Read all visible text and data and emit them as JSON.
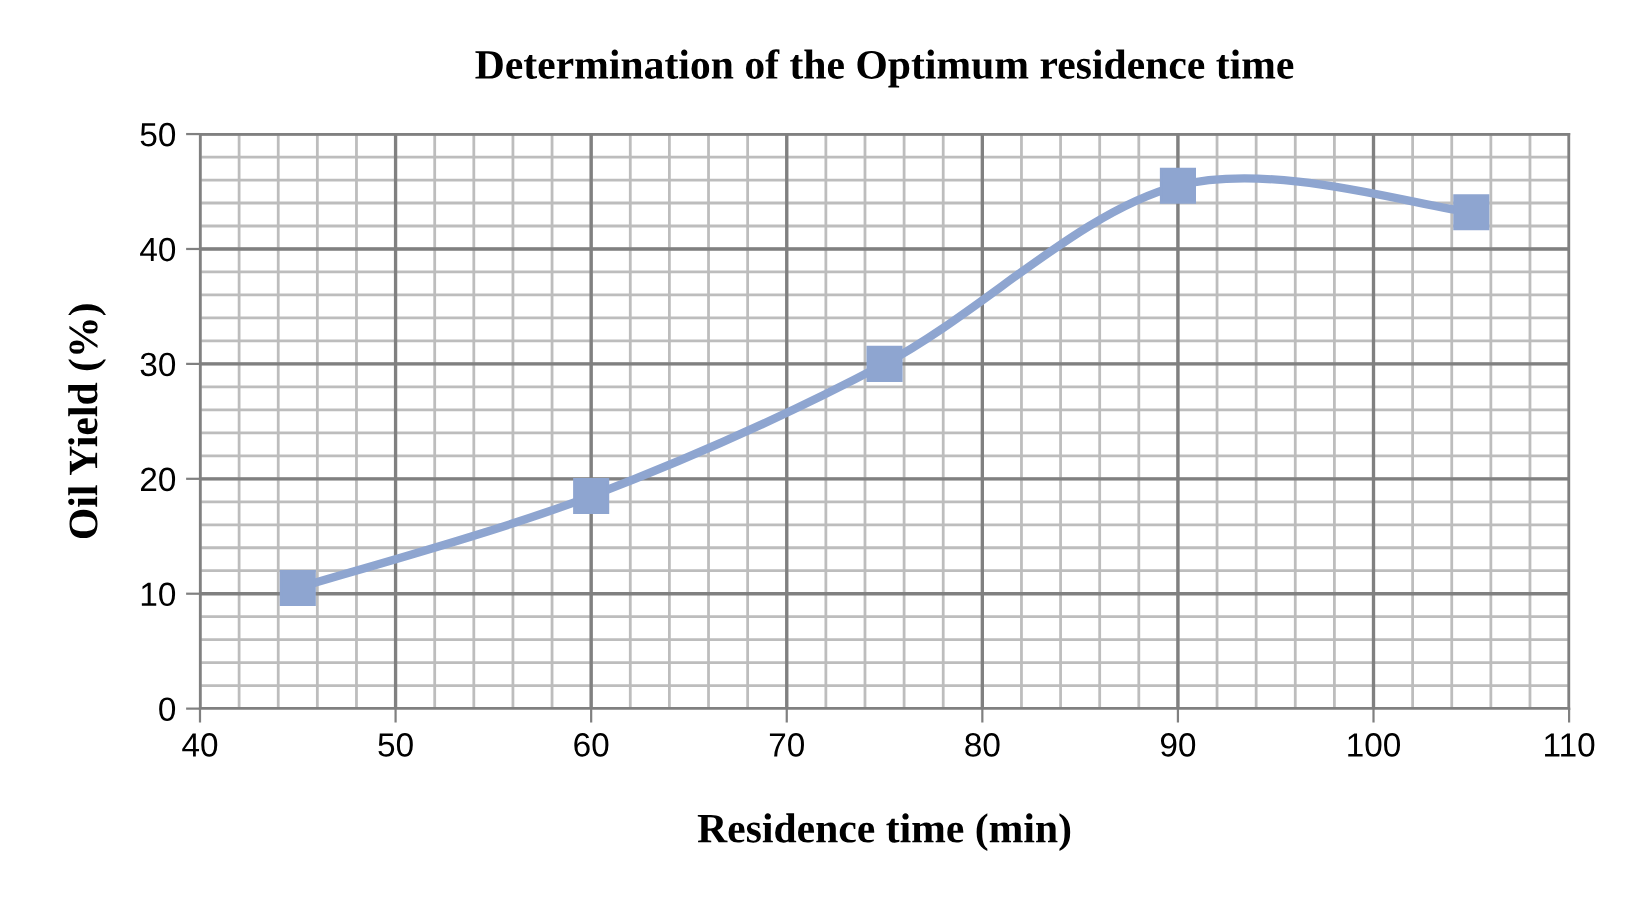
{
  "chart_data": {
    "type": "line",
    "title": "Determination of the Optimum residence time",
    "xlabel": "Residence time (min)",
    "ylabel": "Oil Yield (%)",
    "x": [
      45,
      60,
      75,
      90,
      105
    ],
    "series": [
      {
        "color": "#8ea5d0",
        "values": [
          10.5,
          18.5,
          30,
          45.5,
          43.2
        ]
      }
    ],
    "xlim": [
      40,
      110
    ],
    "xticks": [
      40,
      50,
      60,
      70,
      80,
      90,
      100,
      110
    ],
    "ylim": [
      0,
      50
    ],
    "yticks": [
      0,
      10,
      20,
      30,
      40,
      50
    ],
    "grid": true,
    "marker": "square",
    "line_style": "solid"
  }
}
